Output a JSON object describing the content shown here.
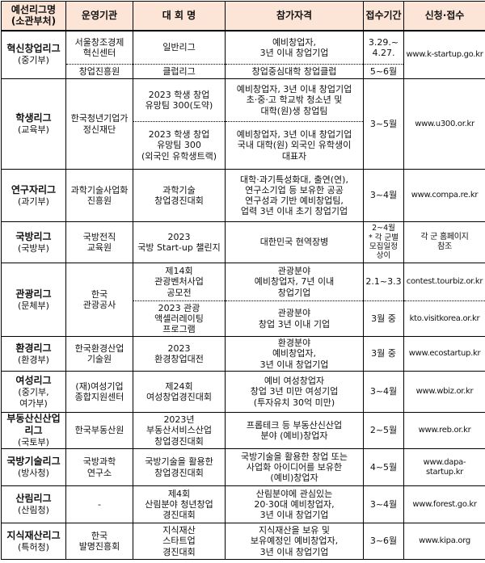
{
  "header": {
    "league": "예선리그명\n(소관부처)",
    "operator": "운영기관",
    "contest": "대 회 명",
    "eligibility": "참가자격",
    "period": "접수기간",
    "apply": "신청·접수"
  },
  "leagues": [
    {
      "name": "혁신창업리그",
      "ministry": "(중기부)",
      "url": "www.k-startup.go.kr",
      "subs": [
        {
          "operator": "서울창조경제\n혁신센터",
          "contest": "일반리그",
          "eligibility": "예비창업자,\n3년 이내 창업기업",
          "period": "3.29.~\n4.27."
        },
        {
          "operator": "창업진흥원",
          "contest": "클럽리그",
          "eligibility": "창업중심대학 창업클럽",
          "period": "5~6월"
        }
      ]
    },
    {
      "name": "학생리그",
      "ministry": "(교육부)",
      "operator": "한국청년기업가\n정신재단",
      "period": "3~5월",
      "url": "www.u300.or.kr",
      "subs": [
        {
          "contest": "2023 학생 창업\n유망팀 300(도약)",
          "eligibility": "예비창업자, 3년 이내 창업기업\n초·중·고 학교밖 청소년 및\n대학(원)생 창업팀"
        },
        {
          "contest": "2023 학생 창업\n유망팀 300\n(외국인 유학생트랙)",
          "eligibility": "예비창업자, 3년 이내 창업기업\n국내 대학(원) 외국인 유학생이\n대표자"
        }
      ]
    },
    {
      "name": "연구자리그",
      "ministry": "(과기부)",
      "operator": "과학기술사업화\n진흥원",
      "period": "3~4월",
      "url": "www.compa.re.kr",
      "subs": [
        {
          "contest": "과학기술\n창업경진대회",
          "eligibility": "대학·과기특성화대, 출연(연),\n연구소기업 등 보유한 공공\n연구성과 기반 예비창업팀,\n업력 3년 이내 초기 창업기업"
        }
      ]
    },
    {
      "name": "국방리그",
      "ministry": "(국방부)",
      "operator": "국방전직\n교육원",
      "period": "2~4월\n* 각 군별\n모집일정\n상이",
      "url": "각 군 홈페이지\n참조",
      "subs": [
        {
          "contest": "2023\n국방 Start-up 챌린지",
          "eligibility": "대한민국 현역장병"
        }
      ]
    },
    {
      "name": "관광리그",
      "ministry": "(문체부)",
      "operator": "한국\n관광공사",
      "subs": [
        {
          "contest": "제14회\n관광벤처사업\n공모전",
          "eligibility": "관광분야\n예비창업자, 7년 이내\n창업기업",
          "period": "2.1~3.3",
          "url": "contest.tourbiz.or.kr"
        },
        {
          "contest": "2023 관광\n액셀러레이팅\n프로그램",
          "eligibility": "관광분야\n창업 3년 이내 기업",
          "period": "3월 중",
          "url": "kto.visitkorea.or.kr"
        }
      ]
    },
    {
      "name": "환경리그",
      "ministry": "(환경부)",
      "operator": "한국환경산업\n기술원",
      "period": "3월 중",
      "url": "www.ecostartup.kr",
      "subs": [
        {
          "contest": "2023\n환경창업대전",
          "eligibility": "환경분야\n예비창업자,\n3년 이내 창업기업"
        }
      ]
    },
    {
      "name": "여성리그",
      "ministry": "(중기부,\n여가부)",
      "operator": "(재)여성기업\n종합지원센터",
      "period": "3~4월",
      "url": "www.wbiz.or.kr",
      "subs": [
        {
          "contest": "제24회\n여성창업경진대회",
          "eligibility": "예비 여성창업자\n창업 3년 미만 여성기업\n(투자유치 30억 미만)"
        }
      ]
    },
    {
      "name": "부동산신산업\n리그",
      "ministry": "(국토부)",
      "operator": "한국부동산원",
      "period": "2~5월",
      "url": "www.reb.or.kr",
      "subs": [
        {
          "contest": "2023년\n부동산서비스산업\n창업경진대회",
          "eligibility": "프롭테크 등 부동산신산업\n분야 (예비)창업자"
        }
      ]
    },
    {
      "name": "국방기술리그",
      "ministry": "(방사청)",
      "operator": "국방과학\n연구소",
      "period": "4~5월",
      "url": "www.dapa-startup.kr",
      "subs": [
        {
          "contest": "국방기술을 활용한\n창업경진대회",
          "eligibility": "국방기술을 활용한 창업 또는\n사업화 아이디어를 보유한\n(예비)창업자"
        }
      ]
    },
    {
      "name": "산림리그",
      "ministry": "(산림청)",
      "operator": "-",
      "period": "3~4월",
      "url": "www.forest.go.kr",
      "subs": [
        {
          "contest": "제4회\n산림분야 청년창업\n경진대회",
          "eligibility": "산림분야에 관심있는\n20·30대 예비창업자,\n3년 이내 창업기업"
        }
      ]
    },
    {
      "name": "지식재산리그",
      "ministry": "(특허청)",
      "operator": "한국\n발명진흥회",
      "period": "3~6월",
      "url": "www.kipa.org",
      "subs": [
        {
          "contest": "지식재산\n스타트업\n경진대회",
          "eligibility": "지식재산을 보유 및\n보유예정인 예비창업자,\n3년 이내 창업기업"
        }
      ]
    }
  ]
}
